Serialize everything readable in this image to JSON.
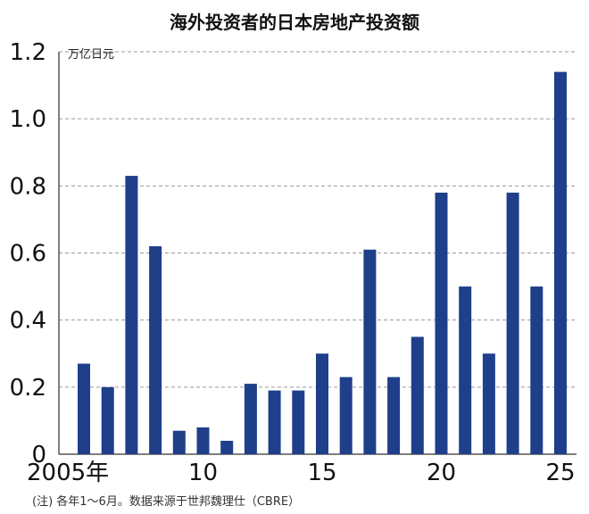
{
  "chart_data": {
    "type": "bar",
    "title": "海外投资者的日本房地产投资额",
    "unit_label": "万亿日元",
    "note": "(注) 各年1～6月。数据来源于世邦魏理仕（CBRE）",
    "categories": [
      "2005",
      "2006",
      "2007",
      "2008",
      "2009",
      "2010",
      "2011",
      "2012",
      "2013",
      "2014",
      "2015",
      "2016",
      "2017",
      "2018",
      "2019",
      "2020",
      "2021",
      "2022",
      "2023",
      "2024",
      "2025"
    ],
    "values": [
      0.27,
      0.2,
      0.83,
      0.62,
      0.07,
      0.08,
      0.04,
      0.21,
      0.19,
      0.19,
      0.3,
      0.23,
      0.61,
      0.23,
      0.35,
      0.78,
      0.5,
      0.3,
      0.78,
      0.5,
      1.14
    ],
    "ylim": [
      0,
      1.2
    ],
    "yticks": [
      "0",
      "0.2",
      "0.4",
      "0.6",
      "0.8",
      "1.0",
      "1.2"
    ],
    "xtick_labels": [
      {
        "index": 0,
        "label": "2005年"
      },
      {
        "index": 5,
        "label": "10"
      },
      {
        "index": 10,
        "label": "15"
      },
      {
        "index": 15,
        "label": "20"
      },
      {
        "index": 20,
        "label": "25"
      }
    ],
    "grid": true,
    "bar_color": "#1f3f8a"
  }
}
